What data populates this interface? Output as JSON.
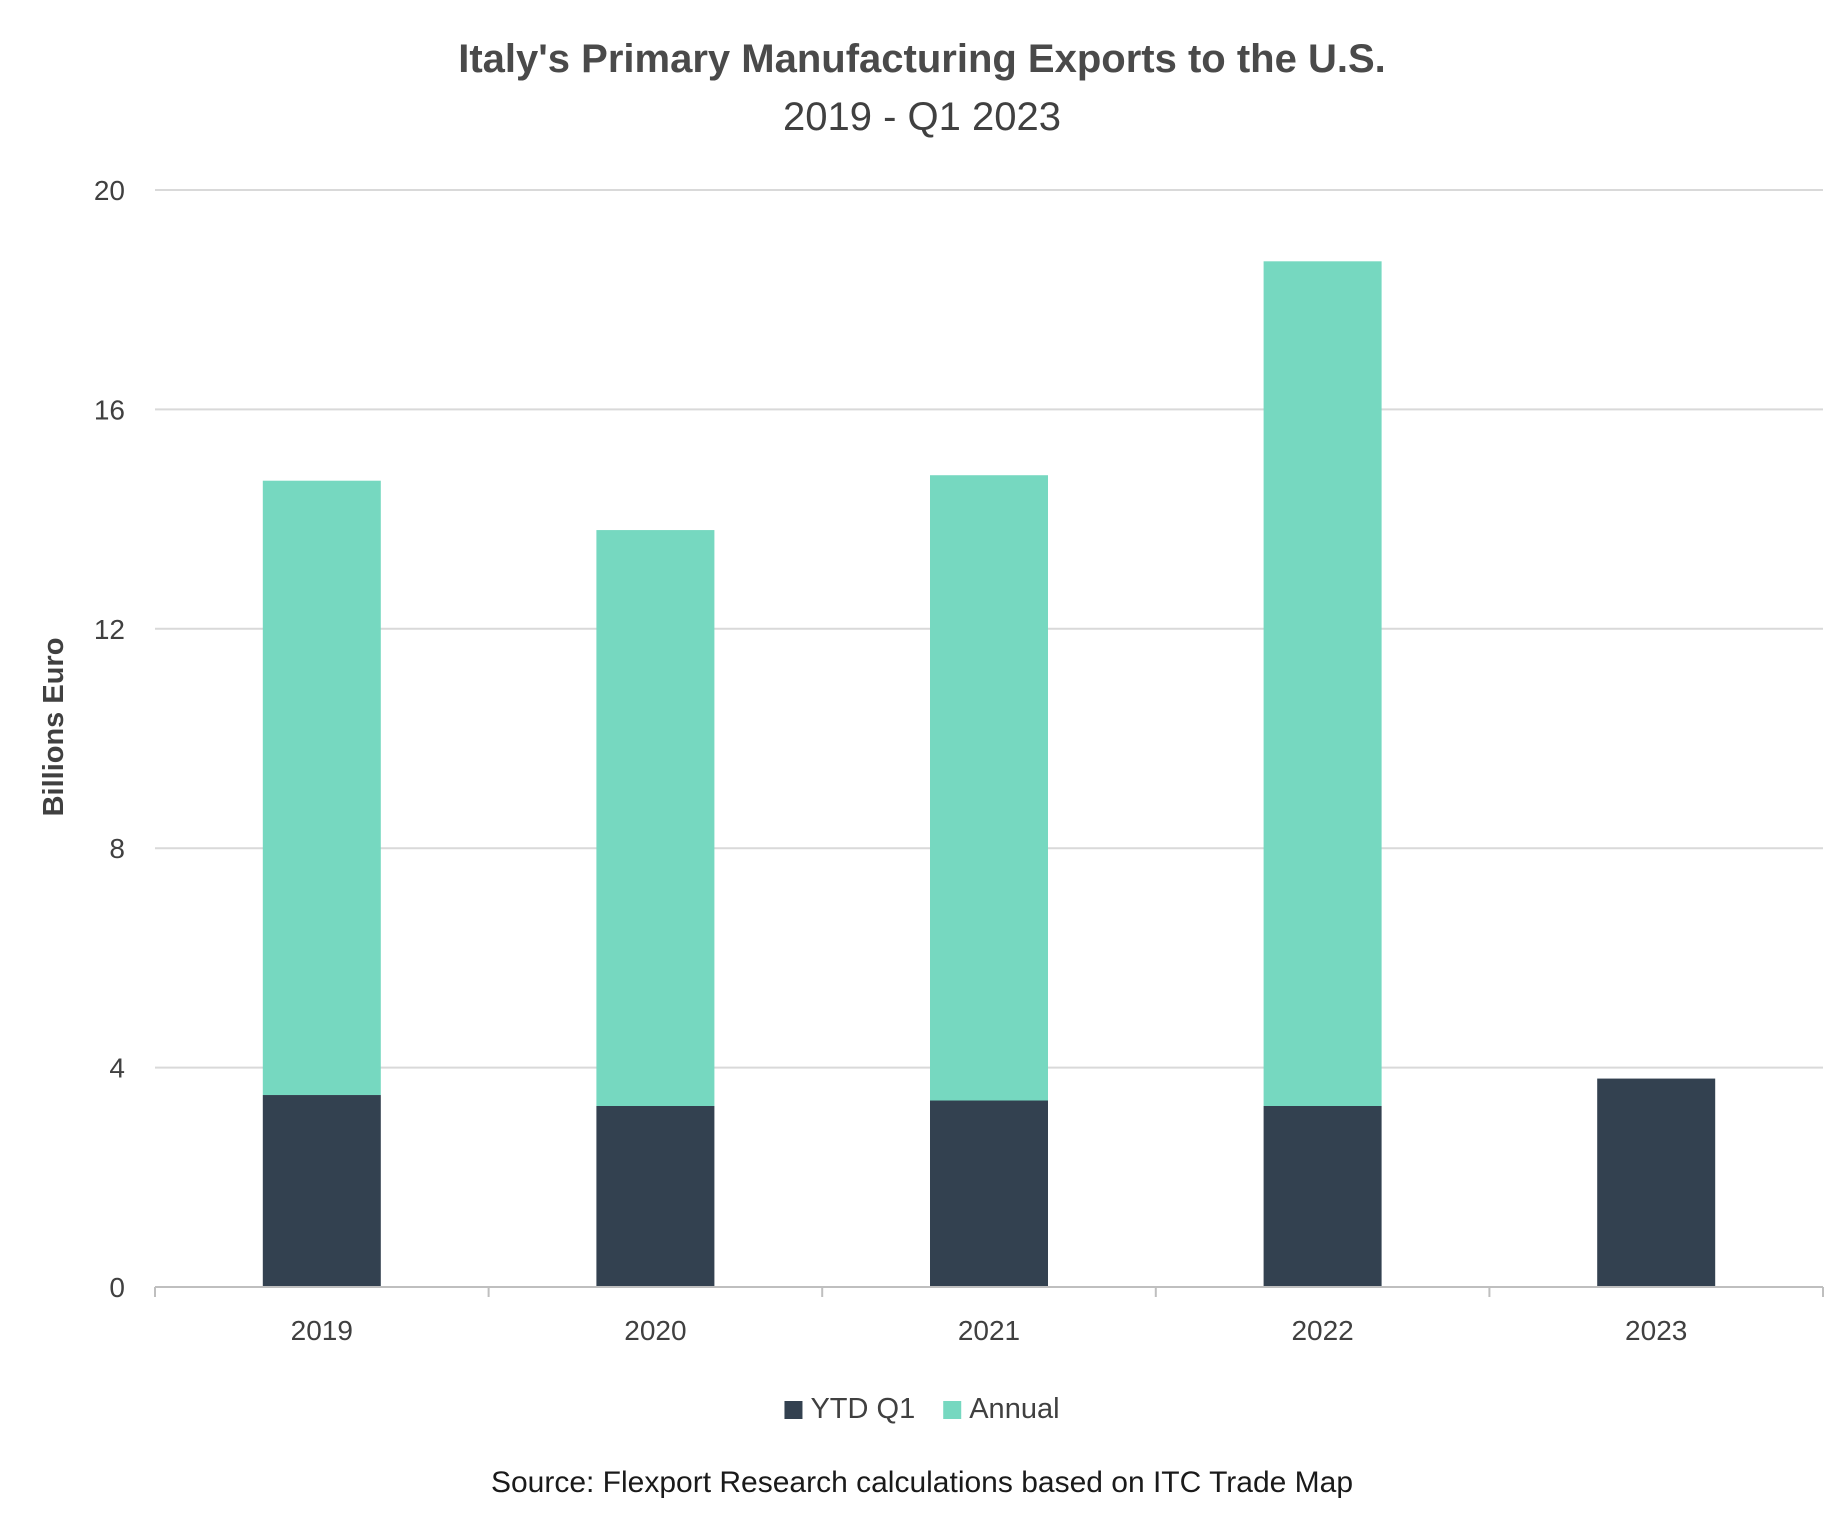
{
  "chart_data": {
    "type": "bar",
    "stacked": true,
    "title": "Italy's Primary Manufacturing Exports to the U.S.",
    "subtitle": "2019 - Q1 2023",
    "xlabel": "",
    "ylabel": "Billions Euro",
    "categories": [
      "2019",
      "2020",
      "2021",
      "2022",
      "2023"
    ],
    "series": [
      {
        "name": "YTD Q1",
        "color": "#334150",
        "values": [
          3.5,
          3.3,
          3.4,
          3.3,
          3.8
        ]
      },
      {
        "name": "Annual",
        "color": "#76d8c0",
        "values": [
          11.2,
          10.5,
          11.4,
          15.4,
          null
        ]
      }
    ],
    "ylim": [
      0,
      20
    ],
    "yticks": [
      0,
      4,
      8,
      12,
      16,
      20
    ],
    "grid": true,
    "legend": "bottom-center",
    "source": "Source: Flexport Research calculations based on ITC Trade Map"
  }
}
